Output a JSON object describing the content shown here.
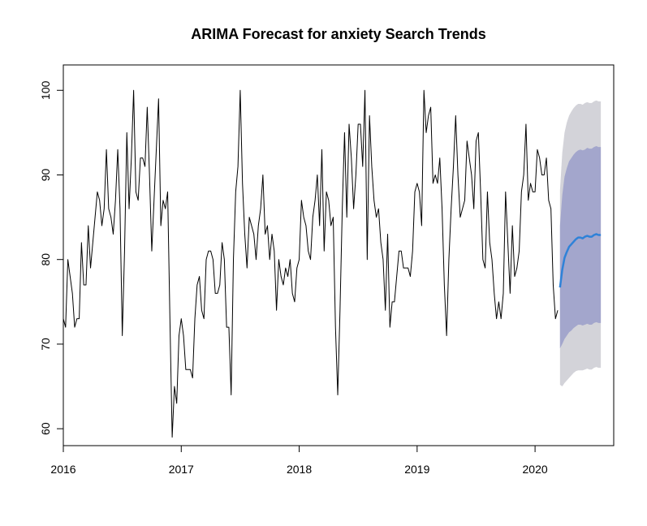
{
  "chart_data": {
    "type": "line",
    "title": "ARIMA Forecast for anxiety Search Trends",
    "xlabel": "",
    "ylabel": "",
    "xlim": [
      2016,
      2020.667
    ],
    "ylim": [
      58,
      103
    ],
    "x_ticks": [
      2016,
      2017,
      2018,
      2019,
      2020
    ],
    "x_tick_labels": [
      "2016",
      "2017",
      "2018",
      "2019",
      "2020"
    ],
    "y_ticks": [
      60,
      70,
      80,
      90,
      100
    ],
    "y_tick_labels": [
      "60",
      "70",
      "80",
      "90",
      "100"
    ],
    "grid": false,
    "legend": "none",
    "colors": {
      "observed": "#000000",
      "forecast": "#2f82d8",
      "ci80": "#a3a6cc",
      "ci95": "#d3d3d9"
    },
    "series": [
      {
        "key": "observed",
        "start": 2016.0,
        "step": 0.019230769,
        "values": [
          73,
          72,
          80,
          78,
          76,
          72,
          73,
          73,
          82,
          77,
          77,
          84,
          79,
          82,
          85,
          88,
          87,
          84,
          86,
          93,
          86,
          85,
          83,
          87,
          93,
          86,
          71,
          81,
          95,
          86,
          92,
          100,
          88,
          87,
          92,
          92,
          91,
          98,
          90,
          81,
          87,
          93,
          99,
          84,
          87,
          86,
          88,
          73,
          59,
          65,
          63,
          71,
          73,
          71,
          67,
          67,
          67,
          66,
          73,
          77,
          78,
          74,
          73,
          80,
          81,
          81,
          80,
          76,
          76,
          77,
          82,
          80,
          72,
          72,
          64,
          80,
          88,
          91,
          100,
          89,
          83,
          79,
          85,
          84,
          83,
          80,
          84,
          86,
          90,
          83,
          84,
          80,
          83,
          81,
          74,
          80,
          78,
          77,
          79,
          78,
          80,
          76,
          75,
          79,
          80,
          87,
          85,
          84,
          81,
          80,
          85,
          87,
          90,
          84,
          93,
          81,
          88,
          87,
          84,
          85,
          72,
          64,
          74,
          86,
          95,
          85,
          96,
          92,
          86,
          90,
          96,
          96,
          91,
          100,
          80,
          97,
          91,
          87,
          85,
          86,
          82,
          80,
          74,
          83,
          72,
          75,
          75,
          78,
          81,
          81,
          79,
          79,
          79,
          78,
          81,
          88,
          89,
          88,
          84,
          100,
          95,
          97,
          98,
          89,
          90,
          89,
          92,
          86,
          77,
          71,
          80,
          86,
          91,
          97,
          90,
          85,
          86,
          87,
          94,
          92,
          90,
          86,
          94,
          95,
          88,
          80,
          79,
          88,
          82,
          80,
          76,
          73,
          75,
          73,
          76,
          88,
          82,
          76,
          84,
          78,
          79,
          81,
          88,
          90,
          96,
          87,
          89,
          88,
          88,
          93,
          92,
          90,
          90,
          92,
          87,
          86,
          77,
          73,
          74
        ]
      },
      {
        "key": "forecast",
        "start": 2020.2115,
        "step": 0.019230769,
        "values": [
          76.7,
          78.8,
          80.2,
          80.9,
          81.5,
          81.8,
          82.1,
          82.4,
          82.6,
          82.6,
          82.5,
          82.7,
          82.8,
          82.7,
          82.7,
          82.9,
          83.0,
          82.9,
          82.9
        ],
        "ci80_lower": [
          69.5,
          70.0,
          70.6,
          71.0,
          71.4,
          71.6,
          71.9,
          72.1,
          72.3,
          72.3,
          72.2,
          72.3,
          72.4,
          72.3,
          72.3,
          72.5,
          72.6,
          72.5,
          72.5
        ],
        "ci80_upper": [
          84.0,
          87.6,
          89.8,
          90.8,
          91.6,
          92.0,
          92.4,
          92.7,
          92.9,
          93.0,
          92.9,
          93.0,
          93.2,
          93.1,
          93.1,
          93.3,
          93.4,
          93.3,
          93.3
        ],
        "ci95_lower": [
          65.2,
          65.0,
          65.4,
          65.7,
          66.0,
          66.3,
          66.6,
          66.8,
          66.9,
          66.9,
          66.9,
          67.0,
          67.1,
          67.0,
          67.0,
          67.2,
          67.3,
          67.2,
          67.2
        ],
        "ci95_upper": [
          88.2,
          92.6,
          95.0,
          96.2,
          97.0,
          97.5,
          97.9,
          98.2,
          98.4,
          98.4,
          98.3,
          98.5,
          98.6,
          98.5,
          98.5,
          98.7,
          98.8,
          98.7,
          98.7
        ]
      }
    ]
  }
}
